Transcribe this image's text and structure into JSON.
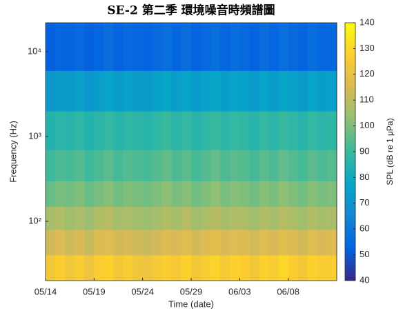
{
  "chart_data": {
    "type": "heatmap",
    "title": "SE-2 第二季 環境噪音時頻譜圖",
    "xlabel": "Time (date)",
    "ylabel": "Frequency (Hz)",
    "colorbar_label": "SPL (dB re 1 μPa)",
    "categories": [
      "05/14",
      null,
      null,
      null,
      null,
      "05/19",
      null,
      null,
      null,
      null,
      "05/24",
      null,
      null,
      null,
      null,
      "05/29",
      null,
      null,
      null,
      null,
      "06/03",
      null,
      null,
      null,
      null,
      "06/08",
      null,
      null,
      null,
      null
    ],
    "y_bins": [
      20,
      40,
      80,
      150,
      300,
      700,
      2000,
      6000,
      22000
    ],
    "ylim": [
      20,
      22000
    ],
    "yscale": "log",
    "yticks": [
      {
        "value": 100,
        "label": "10²"
      },
      {
        "value": 1000,
        "label": "10³"
      },
      {
        "value": 10000,
        "label": "10⁴"
      }
    ],
    "clim": [
      40,
      140
    ],
    "cticks": [
      40,
      50,
      60,
      70,
      80,
      90,
      100,
      110,
      120,
      130,
      140
    ],
    "colormap": [
      "#352a87",
      "#0363e1",
      "#1485d4",
      "#06a7c6",
      "#38b99e",
      "#92bf73",
      "#d9ba56",
      "#fcce2e",
      "#f9fb0e"
    ],
    "z": [
      [
        124,
        127,
        123,
        126,
        122,
        127,
        128,
        124,
        126,
        123,
        122,
        125,
        127,
        125,
        128,
        124,
        126,
        129,
        125,
        128,
        127,
        124,
        128,
        126,
        130,
        127,
        124,
        128,
        126,
        127
      ],
      [
        114,
        116,
        113,
        115,
        112,
        116,
        117,
        114,
        115,
        113,
        112,
        114,
        116,
        115,
        117,
        114,
        116,
        118,
        115,
        117,
        116,
        114,
        117,
        115,
        118,
        116,
        114,
        117,
        115,
        116
      ],
      [
        106,
        108,
        105,
        107,
        104,
        108,
        109,
        106,
        107,
        105,
        104,
        106,
        108,
        106,
        109,
        105,
        107,
        109,
        106,
        108,
        107,
        105,
        108,
        106,
        109,
        107,
        105,
        108,
        106,
        107
      ],
      [
        97,
        99,
        98,
        100,
        97,
        99,
        101,
        98,
        100,
        99,
        98,
        100,
        102,
        99,
        101,
        98,
        100,
        102,
        99,
        101,
        100,
        98,
        101,
        99,
        102,
        100,
        98,
        101,
        99,
        100
      ],
      [
        91,
        93,
        92,
        94,
        91,
        93,
        95,
        92,
        94,
        93,
        92,
        94,
        96,
        93,
        95,
        92,
        94,
        96,
        93,
        95,
        94,
        92,
        95,
        93,
        96,
        94,
        92,
        95,
        93,
        94
      ],
      [
        85,
        87,
        86,
        88,
        85,
        87,
        89,
        86,
        88,
        87,
        86,
        88,
        90,
        87,
        89,
        86,
        88,
        90,
        87,
        89,
        88,
        86,
        89,
        87,
        90,
        88,
        86,
        89,
        87,
        88
      ],
      [
        72,
        74,
        73,
        75,
        72,
        74,
        76,
        73,
        75,
        74,
        73,
        75,
        77,
        74,
        76,
        73,
        75,
        77,
        74,
        76,
        75,
        73,
        76,
        74,
        77,
        75,
        73,
        76,
        74,
        75
      ],
      [
        52,
        54,
        53,
        55,
        52,
        54,
        56,
        53,
        55,
        54,
        53,
        55,
        57,
        54,
        56,
        53,
        55,
        57,
        54,
        56,
        55,
        53,
        56,
        54,
        57,
        55,
        53,
        56,
        54,
        55
      ]
    ]
  }
}
